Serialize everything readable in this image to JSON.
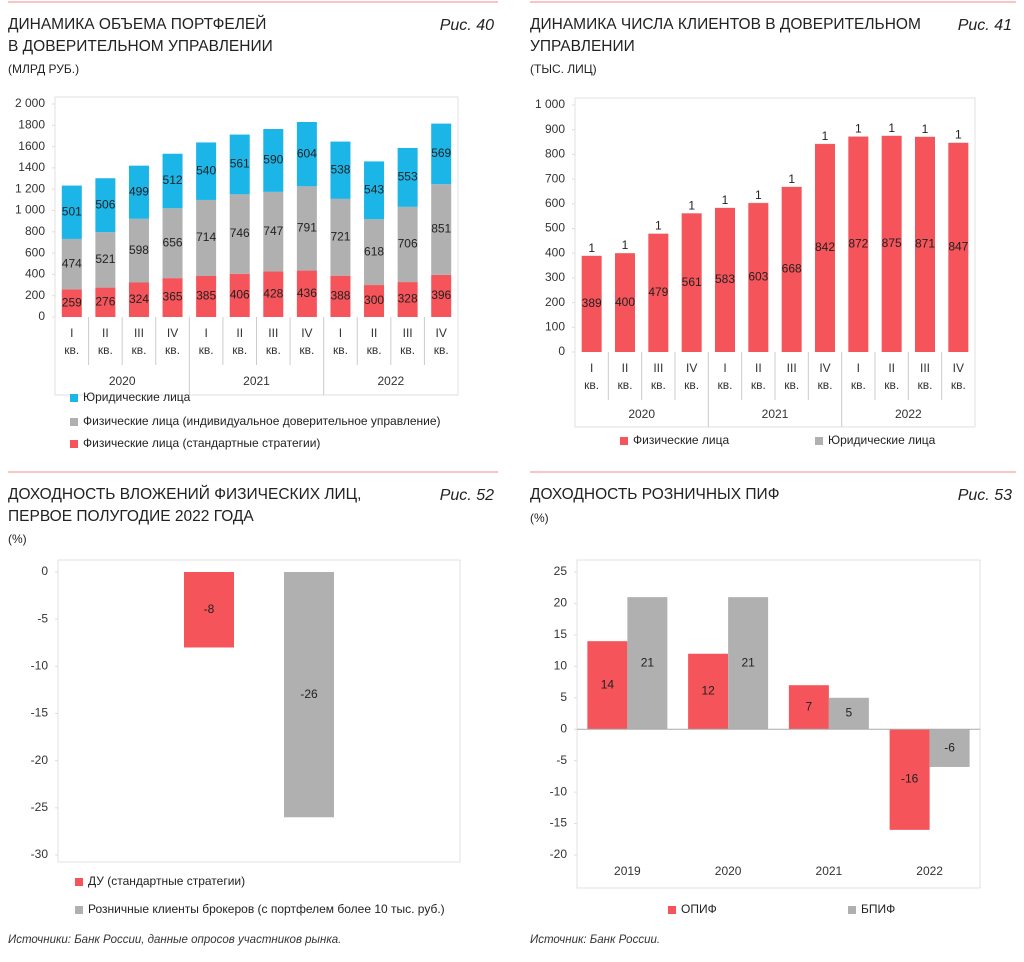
{
  "chart_data": [
    {
      "type": "bar",
      "stacked": true,
      "figure": "Рис. 40",
      "title": "ДИНАМИКА ОБЪЕМА ПОРТФЕЛЕЙ В ДОВЕРИТЕЛЬНОМ УПРАВЛЕНИИ",
      "subtitle": "(МЛРД РУБ.)",
      "categories": [
        "I кв.",
        "II кв.",
        "III кв.",
        "IV кв.",
        "I кв.",
        "II кв.",
        "III кв.",
        "IV кв.",
        "I кв.",
        "II кв.",
        "III кв.",
        "IV кв."
      ],
      "x_groups": [
        "2020",
        "2021",
        "2022"
      ],
      "series": [
        {
          "name": "Физические лица (стандартные стратегии)",
          "color": "#f4545a",
          "values": [
            259,
            276,
            324,
            365,
            385,
            406,
            428,
            436,
            388,
            300,
            328,
            396
          ]
        },
        {
          "name": "Физические лица (индивидуальное доверительное управление)",
          "color": "#b0b0b0",
          "values": [
            474,
            521,
            598,
            656,
            714,
            746,
            747,
            791,
            721,
            618,
            706,
            851
          ]
        },
        {
          "name": "Юридические лица",
          "color": "#1cb5e8",
          "values": [
            501,
            506,
            499,
            512,
            540,
            561,
            590,
            604,
            538,
            543,
            553,
            569
          ]
        }
      ],
      "ylim": [
        0,
        2000
      ],
      "yticks": [
        0,
        200,
        400,
        600,
        800,
        {
          "value": 1000,
          "label": "1 000"
        },
        {
          "value": 1200,
          "label": "1 200"
        },
        1400,
        1600,
        1800,
        {
          "value": 2000,
          "label": "2 000"
        }
      ],
      "grid": false,
      "legend": "bottom"
    },
    {
      "type": "bar",
      "stacked": true,
      "figure": "Рис. 41",
      "title": "ДИНАМИКА ЧИСЛА КЛИЕНТОВ В ДОВЕРИТЕЛЬНОМ УПРАВЛЕНИИ",
      "subtitle": "(ТЫС. ЛИЦ)",
      "categories": [
        "I кв.",
        "II кв.",
        "III кв.",
        "IV кв.",
        "I кв.",
        "II кв.",
        "III кв.",
        "IV кв.",
        "I кв.",
        "II кв.",
        "III кв.",
        "IV кв."
      ],
      "x_groups": [
        "2020",
        "2021",
        "2022"
      ],
      "series": [
        {
          "name": "Физические лица",
          "color": "#f4545a",
          "values": [
            389,
            400,
            479,
            561,
            583,
            603,
            668,
            842,
            872,
            875,
            871,
            847
          ]
        },
        {
          "name": "Юридические лица",
          "color": "#b0b0b0",
          "values": [
            1,
            1,
            1,
            1,
            1,
            1,
            1,
            1,
            1,
            1,
            1,
            1
          ]
        }
      ],
      "ylim": [
        0,
        1000
      ],
      "yticks": [
        0,
        100,
        200,
        300,
        400,
        500,
        600,
        700,
        800,
        900,
        {
          "value": 1000,
          "label": "1 000"
        }
      ],
      "grid": false,
      "legend": "bottom"
    },
    {
      "type": "bar",
      "stacked": false,
      "figure": "Рис. 52",
      "title": "ДОХОДНОСТЬ ВЛОЖЕНИЙ ФИЗИЧЕСКИХ ЛИЦ, ПЕРВОЕ ПОЛУГОДИЕ 2022 ГОДА",
      "subtitle": "(%)",
      "categories": [
        null
      ],
      "series": [
        {
          "name": "ДУ (стандартные стратегии)",
          "color": "#f4545a",
          "values": [
            -8
          ]
        },
        {
          "name": "Розничные клиенты брокеров (с портфелем более 10 тыс. руб.)",
          "color": "#b0b0b0",
          "values": [
            -26
          ]
        }
      ],
      "ylim": [
        -30,
        0
      ],
      "yticks": [
        0,
        -5,
        -10,
        -15,
        -20,
        -25,
        -30
      ],
      "grid": false,
      "legend": "bottom",
      "source": "Источники: Банк России, данные опросов участников рынка."
    },
    {
      "type": "bar",
      "stacked": false,
      "figure": "Рис. 53",
      "title": "ДОХОДНОСТЬ РОЗНИЧНЫХ ПИФ",
      "subtitle": "(%)",
      "categories": [
        "2019",
        "2020",
        "2021",
        "2022"
      ],
      "series": [
        {
          "name": "ОПИФ",
          "color": "#f4545a",
          "values": [
            14,
            12,
            7,
            -16
          ]
        },
        {
          "name": "БПИФ",
          "color": "#b0b0b0",
          "values": [
            21,
            21,
            5,
            -6
          ]
        }
      ],
      "ylim": [
        -20,
        25
      ],
      "yticks": [
        -20,
        -15,
        -10,
        -5,
        0,
        5,
        10,
        15,
        20,
        25
      ],
      "grid": false,
      "legend": "bottom",
      "source": "Источник: Банк России."
    }
  ]
}
